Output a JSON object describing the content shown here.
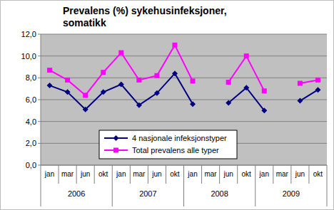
{
  "chart_data": {
    "type": "line",
    "title": "Prevalens (%) sykehusinfeksjoner, somatikk",
    "categories": [
      "jan",
      "mar",
      "jun",
      "okt",
      "jan",
      "mar",
      "jun",
      "okt",
      "jan",
      "mar",
      "jun",
      "okt",
      "jan",
      "mar",
      "jun",
      "okt"
    ],
    "category_groups": [
      "2006",
      "2007",
      "2008",
      "2009"
    ],
    "series": [
      {
        "name": "4 nasjonale infeksjonstyper",
        "color": "#000080",
        "marker": "diamond",
        "values": [
          7.3,
          6.7,
          5.1,
          6.7,
          7.4,
          5.5,
          6.6,
          8.4,
          5.6,
          null,
          5.7,
          7.1,
          5.0,
          null,
          5.9,
          6.9
        ]
      },
      {
        "name": "Total prevalens alle typer",
        "color": "#ff00ff",
        "marker": "square",
        "values": [
          8.7,
          7.8,
          6.4,
          8.5,
          10.3,
          7.8,
          8.2,
          11.0,
          7.7,
          null,
          7.6,
          10.0,
          6.8,
          null,
          7.5,
          7.8
        ]
      }
    ],
    "ylim": [
      0,
      12
    ],
    "yticks": [
      {
        "value": 0,
        "label": "0,0"
      },
      {
        "value": 2,
        "label": "2,0"
      },
      {
        "value": 4,
        "label": "4,0"
      },
      {
        "value": 6,
        "label": "6,0"
      },
      {
        "value": 8,
        "label": "8,0"
      },
      {
        "value": 10,
        "label": "10,0"
      },
      {
        "value": 12,
        "label": "12,0"
      }
    ],
    "grid": true,
    "legend": "lower left"
  }
}
